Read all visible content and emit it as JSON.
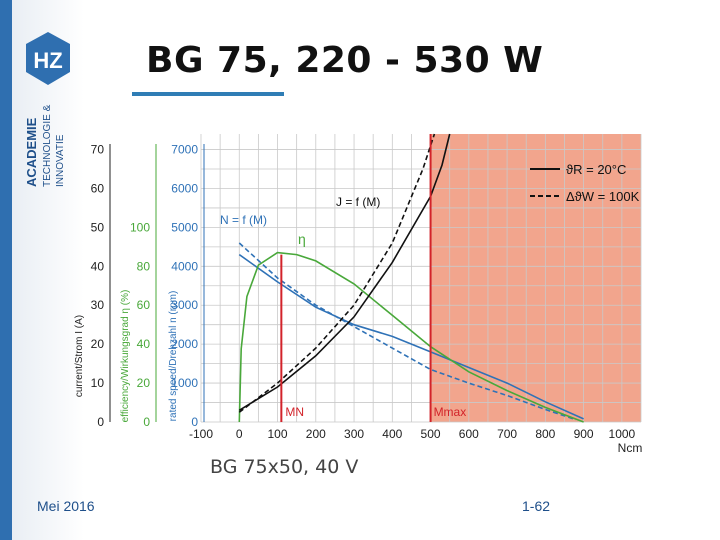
{
  "slide": {
    "title": "BG 75, 220 - 530 W",
    "caption": "BG 75x50, 40 V",
    "footer_date": "Mei 2016",
    "footer_page": "1-62"
  },
  "logo": {
    "letters": "HZ",
    "line1": "ACADEMIE",
    "line2": "TECHNOLOGIE &",
    "line3": "INNOVATIE"
  },
  "colors": {
    "accent": "#2f7db5",
    "green": "#49a83a",
    "blue": "#2f72b7",
    "red": "#d2232a",
    "region": "#f2a58d"
  },
  "chart_data": {
    "type": "line",
    "x_axis": {
      "label": "Ncm",
      "ticks": [
        -100,
        0,
        100,
        200,
        300,
        400,
        500,
        600,
        700,
        800,
        900,
        1000
      ],
      "range": [
        -100,
        1050
      ]
    },
    "axes_left": [
      {
        "label": "current/Strom I (A)",
        "ticks": [
          0,
          10,
          20,
          30,
          40,
          50,
          60,
          70
        ],
        "color": "#222222"
      },
      {
        "label": "efficiency/Wirkungsgrad η (%)",
        "ticks": [
          0,
          20,
          40,
          60,
          80,
          100
        ],
        "color": "#49a83a"
      },
      {
        "label": "rated speed/Drehzahl n (rpm)",
        "ticks": [
          0,
          1000,
          2000,
          3000,
          4000,
          5000,
          6000,
          7000
        ],
        "color": "#2f72b7"
      }
    ],
    "y_range_rpm": [
      0,
      7400
    ],
    "legend": {
      "placement": "top-right",
      "items": [
        {
          "text": "ϑR = 20°C",
          "style": "solid"
        },
        {
          "text": "ΔϑW = 100K",
          "style": "dashed"
        }
      ]
    },
    "annotations": {
      "speed_label": "N = f (M)",
      "current_label": "J = f (M)",
      "eff_label": "η",
      "mn_label": "MN",
      "mmax_label": "Mmax"
    },
    "markers": {
      "MN": 110,
      "Mmax": 500
    },
    "series": [
      {
        "kind": "speed",
        "style": "solid",
        "x": [
          0,
          100,
          200,
          300,
          400,
          500,
          600,
          700,
          800,
          900
        ],
        "y": [
          4300,
          3600,
          2950,
          2500,
          2200,
          1800,
          1400,
          1000,
          520,
          80
        ]
      },
      {
        "kind": "speed",
        "style": "dashed",
        "x": [
          0,
          100,
          200,
          300,
          400,
          500,
          600,
          700,
          800,
          880
        ],
        "y": [
          4600,
          3700,
          3000,
          2450,
          1900,
          1350,
          1000,
          680,
          320,
          60
        ]
      },
      {
        "kind": "efficiency",
        "style": "solid",
        "x": [
          0,
          5,
          20,
          50,
          100,
          150,
          200,
          300,
          400,
          500,
          600,
          700,
          800,
          900
        ],
        "y": [
          0,
          35,
          60,
          75,
          81,
          80,
          77,
          66,
          51,
          36,
          24,
          15,
          7,
          0
        ]
      },
      {
        "kind": "current",
        "style": "solid",
        "x": [
          0,
          100,
          200,
          300,
          400,
          500,
          530,
          550
        ],
        "y": [
          300,
          900,
          1700,
          2700,
          4100,
          5800,
          6600,
          7400
        ]
      },
      {
        "kind": "current",
        "style": "dashed",
        "x": [
          0,
          100,
          200,
          300,
          400,
          480,
          510
        ],
        "y": [
          250,
          1000,
          1900,
          3000,
          4600,
          6500,
          7400
        ]
      }
    ]
  }
}
